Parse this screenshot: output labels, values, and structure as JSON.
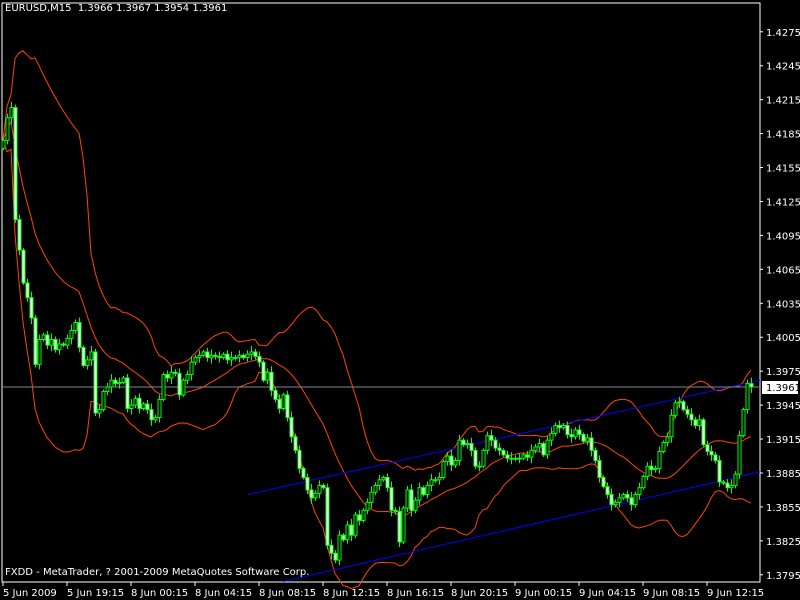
{
  "header": {
    "symbol": "EURUSD,M15",
    "ohlc": "1.3966 1.3967 1.3954 1.3961"
  },
  "copyright": "FXDD - MetaTrader, ? 2001-2009 MetaQuotes Software Corp.",
  "colors": {
    "background": "#000000",
    "candle_outline": "#00FF00",
    "bull_fill": "#000000",
    "bear_fill": "#FFFFFF",
    "bands": "#FF4500",
    "channel": "#0000FF",
    "bid_line": "#778899",
    "axis": "#FFFFFF"
  },
  "chart_data": {
    "type": "candlestick",
    "symbol": "EURUSD",
    "timeframe": "M15",
    "first_open": 1.4172,
    "closes": [
      1.4179,
      1.4199,
      1.4208,
      1.4109,
      1.4082,
      1.4053,
      1.404,
      1.4022,
      1.3981,
      1.4003,
      1.4007,
      1.3998,
      1.4003,
      1.3994,
      1.3999,
      1.3998,
      1.4004,
      1.4011,
      1.4018,
      1.3996,
      1.398,
      1.3985,
      1.3992,
      1.3938,
      1.3941,
      1.3957,
      1.3961,
      1.3967,
      1.3964,
      1.3965,
      1.3969,
      1.3942,
      1.3945,
      1.3951,
      1.3942,
      1.3946,
      1.3941,
      1.3932,
      1.3934,
      1.395,
      1.3972,
      1.3969,
      1.3974,
      1.3973,
      1.3954,
      1.3967,
      1.3972,
      1.3983,
      1.3987,
      1.3989,
      1.3992,
      1.3987,
      1.3989,
      1.3988,
      1.3987,
      1.399,
      1.3985,
      1.3987,
      1.3987,
      1.3989,
      1.3987,
      1.399,
      1.3992,
      1.3988,
      1.3983,
      1.3967,
      1.3974,
      1.3958,
      1.395,
      1.3942,
      1.3954,
      1.3934,
      1.3917,
      1.3905,
      1.3889,
      1.3881,
      1.387,
      1.3863,
      1.3867,
      1.3874,
      1.3872,
      1.3821,
      1.3814,
      1.3808,
      1.383,
      1.3826,
      1.3839,
      1.383,
      1.3848,
      1.3843,
      1.3852,
      1.3859,
      1.3868,
      1.3874,
      1.3879,
      1.3881,
      1.3872,
      1.3852,
      1.3851,
      1.3824,
      1.3854,
      1.387,
      1.3852,
      1.3861,
      1.3872,
      1.3866,
      1.3874,
      1.3879,
      1.3879,
      1.3881,
      1.3895,
      1.39,
      1.3892,
      1.3896,
      1.3914,
      1.391,
      1.3911,
      1.3905,
      1.3891,
      1.3891,
      1.3905,
      1.3918,
      1.3914,
      1.3907,
      1.3905,
      1.3901,
      1.3898,
      1.3898,
      1.3898,
      1.3898,
      1.3901,
      1.3899,
      1.3905,
      1.3908,
      1.3911,
      1.3901,
      1.3914,
      1.392,
      1.3927,
      1.3925,
      1.3927,
      1.3919,
      1.3917,
      1.3923,
      1.3919,
      1.3913,
      1.3916,
      1.3905,
      1.3896,
      1.3881,
      1.3873,
      1.3866,
      1.3857,
      1.3859,
      1.3863,
      1.3866,
      1.3863,
      1.3857,
      1.3866,
      1.3872,
      1.3882,
      1.3891,
      1.3888,
      1.3889,
      1.3904,
      1.3912,
      1.3917,
      1.3936,
      1.3947,
      1.3948,
      1.3941,
      1.3937,
      1.3932,
      1.3927,
      1.3932,
      1.391,
      1.3904,
      1.3901,
      1.3896,
      1.3877,
      1.3876,
      1.3872,
      1.3874,
      1.3884,
      1.3918,
      1.3941,
      1.3964,
      1.3961
    ],
    "bid": "1.3961",
    "indicator": {
      "type": "bollinger_bands",
      "period": 20,
      "deviation": 2
    },
    "channel": [
      {
        "from": {
          "bar": 61.25,
          "price": 1.3866
        },
        "to": {
          "bar": 189.25,
          "price": 1.3967
        }
      },
      {
        "from": {
          "bar": 70,
          "price": 1.3789
        },
        "to": {
          "bar": 189.25,
          "price": 1.3886
        }
      }
    ],
    "ylim": [
      1.3787,
      1.4301
    ],
    "price_ticks": [
      "1.4275",
      "1.4245",
      "1.4215",
      "1.4185",
      "1.4155",
      "1.4125",
      "1.4095",
      "1.4065",
      "1.4035",
      "1.4005",
      "1.3975",
      "1.3945",
      "1.3915",
      "1.3885",
      "1.3855",
      "1.3825",
      "1.3795"
    ],
    "time_ticks": [
      {
        "bar": 0,
        "label": "5 Jun 2009"
      },
      {
        "bar": 16,
        "label": "5 Jun 19:15"
      },
      {
        "bar": 32,
        "label": "8 Jun 00:15"
      },
      {
        "bar": 48,
        "label": "8 Jun 04:15"
      },
      {
        "bar": 64,
        "label": "8 Jun 08:15"
      },
      {
        "bar": 80,
        "label": "8 Jun 12:15"
      },
      {
        "bar": 96,
        "label": "8 Jun 16:15"
      },
      {
        "bar": 112,
        "label": "8 Jun 20:15"
      },
      {
        "bar": 128,
        "label": "9 Jun 00:15"
      },
      {
        "bar": 144,
        "label": "9 Jun 04:15"
      },
      {
        "bar": 160,
        "label": "9 Jun 08:15"
      },
      {
        "bar": 176,
        "label": "9 Jun 12:15"
      }
    ]
  }
}
